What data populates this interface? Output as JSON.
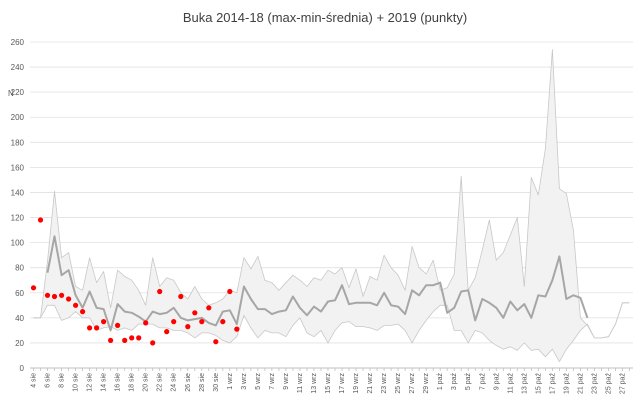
{
  "chart_data": {
    "type": "line",
    "title": "Buka 2014-18 (max-min-średnia) + 2019 (punkty)",
    "ylabel": "N",
    "ylim": [
      0,
      260
    ],
    "yticks": [
      0,
      20,
      40,
      60,
      80,
      100,
      120,
      140,
      160,
      180,
      200,
      220,
      240,
      260
    ],
    "grid": "horizontal",
    "x_dates": [
      "4 sie",
      "5 sie",
      "6 sie",
      "7 sie",
      "8 sie",
      "9 sie",
      "10 sie",
      "11 sie",
      "12 sie",
      "13 sie",
      "14 sie",
      "15 sie",
      "16 sie",
      "17 sie",
      "18 sie",
      "19 sie",
      "20 sie",
      "21 sie",
      "22 sie",
      "23 sie",
      "24 sie",
      "25 sie",
      "26 sie",
      "27 sie",
      "28 sie",
      "29 sie",
      "30 sie",
      "31 sie",
      "1 wrz",
      "2 wrz",
      "3 wrz",
      "4 wrz",
      "5 wrz",
      "6 wrz",
      "7 wrz",
      "8 wrz",
      "9 wrz",
      "10 wrz",
      "11 wrz",
      "12 wrz",
      "13 wrz",
      "14 wrz",
      "15 wrz",
      "16 wrz",
      "17 wrz",
      "18 wrz",
      "19 wrz",
      "20 wrz",
      "21 wrz",
      "22 wrz",
      "23 wrz",
      "24 wrz",
      "25 wrz",
      "26 wrz",
      "27 wrz",
      "28 wrz",
      "29 wrz",
      "30 wrz",
      "1 paź",
      "2 paź",
      "3 paź",
      "4 paź",
      "5 paź",
      "6 paź",
      "7 paź",
      "8 paź",
      "9 paź",
      "10 paź",
      "11 paź",
      "12 paź",
      "13 paź",
      "14 paź",
      "15 paź",
      "16 paź",
      "17 paź",
      "18 paź",
      "19 paź",
      "20 paź",
      "21 paź",
      "22 paź",
      "23 paź",
      "24 paź",
      "25 paź",
      "26 paź",
      "27 paź",
      "28 paź"
    ],
    "x_tick_labels": [
      "4 sie",
      "6 sie",
      "8 sie",
      "10 sie",
      "12 sie",
      "14 sie",
      "16 sie",
      "18 sie",
      "20 sie",
      "22 sie",
      "24 sie",
      "26 sie",
      "28 sie",
      "30 sie",
      "1 wrz",
      "3 wrz",
      "5 wrz",
      "7 wrz",
      "9 wrz",
      "11 wrz",
      "13 wrz",
      "15 wrz",
      "17 wrz",
      "19 wrz",
      "21 wrz",
      "23 wrz",
      "25 wrz",
      "27 wrz",
      "29 wrz",
      "1 paź",
      "3 paź",
      "5 paź",
      "7 paź",
      "9 paź",
      "11 paź",
      "13 paź",
      "15 paź",
      "17 paź",
      "19 paź",
      "21 paź",
      "23 paź",
      "25 paź",
      "27 paź"
    ],
    "series": [
      {
        "role": "max",
        "color": "#c8c8c8",
        "values": [
          40,
          40,
          85,
          141,
          88,
          92,
          65,
          62,
          88,
          68,
          77,
          48,
          78,
          73,
          70,
          62,
          50,
          88,
          65,
          72,
          70,
          60,
          55,
          65,
          55,
          50,
          52,
          55,
          62,
          60,
          88,
          79,
          89,
          70,
          68,
          62,
          68,
          74,
          70,
          65,
          72,
          70,
          78,
          75,
          80,
          64,
          79,
          57,
          73,
          70,
          90,
          80,
          74,
          62,
          97,
          80,
          75,
          86,
          62,
          64,
          75,
          153,
          62,
          72,
          94,
          118,
          86,
          92,
          106,
          120,
          65,
          152,
          138,
          175,
          254,
          143,
          139,
          110,
          40,
          34,
          24,
          24,
          25,
          35,
          52,
          52
        ]
      },
      {
        "role": "min",
        "color": "#c8c8c8",
        "values": [
          40,
          40,
          50,
          50,
          38,
          40,
          45,
          40,
          40,
          30,
          32,
          33,
          30,
          32,
          30,
          35,
          35,
          35,
          32,
          32,
          30,
          30,
          28,
          24,
          28,
          28,
          26,
          22,
          20,
          25,
          42,
          32,
          24,
          30,
          28,
          28,
          25,
          34,
          40,
          28,
          25,
          30,
          20,
          30,
          36,
          37,
          33,
          33,
          32,
          30,
          34,
          34,
          35,
          30,
          20,
          30,
          38,
          45,
          50,
          50,
          30,
          30,
          20,
          30,
          28,
          22,
          18,
          15,
          17,
          14,
          20,
          14,
          15,
          9,
          15,
          5,
          15,
          22,
          30,
          35,
          24,
          24,
          25,
          35,
          52,
          52
        ]
      },
      {
        "role": "average",
        "color": "#a6a6a6",
        "values": [
          null,
          null,
          76,
          105,
          74,
          78,
          58,
          48,
          61,
          48,
          47,
          30,
          51,
          45,
          44,
          41,
          37,
          45,
          43,
          44,
          48,
          40,
          38,
          39,
          40,
          36,
          34,
          45,
          46,
          35,
          65,
          55,
          47,
          47,
          43,
          45,
          46,
          57,
          48,
          42,
          49,
          45,
          53,
          54,
          66,
          51,
          52,
          52,
          52,
          50,
          60,
          50,
          49,
          43,
          62,
          58,
          66,
          66,
          68,
          44,
          48,
          61,
          62,
          38,
          55,
          52,
          48,
          40,
          53,
          46,
          51,
          40,
          58,
          57,
          70,
          89,
          55,
          58,
          56,
          40,
          null,
          null,
          null,
          null,
          null,
          null
        ]
      },
      {
        "role": "2019",
        "color": "#ff0000",
        "values": [
          64,
          118,
          58,
          57,
          58,
          55,
          50,
          45,
          32,
          32,
          37,
          22,
          34,
          22,
          24,
          24,
          36,
          20,
          61,
          29,
          37,
          57,
          33,
          44,
          37,
          48,
          21,
          37,
          61,
          31,
          null,
          null,
          null,
          null,
          null,
          null,
          null,
          null,
          null,
          null,
          null,
          null,
          null,
          null,
          null,
          null,
          null,
          null,
          null,
          null,
          null,
          null,
          null,
          null,
          null,
          null,
          null,
          null,
          null,
          null,
          null,
          null,
          null,
          null,
          null,
          null,
          null,
          null,
          null,
          null,
          null,
          null,
          null,
          null,
          null,
          null,
          null,
          null,
          null,
          null,
          null,
          null,
          null,
          null,
          null,
          null
        ]
      }
    ]
  }
}
